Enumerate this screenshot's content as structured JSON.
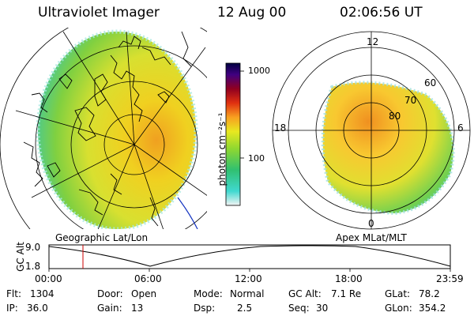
{
  "header": {
    "instrument": "Ultraviolet Imager",
    "date": "12 Aug 00",
    "time": "02:06:56 UT"
  },
  "colorbar": {
    "label": "photon cm⁻²s⁻¹",
    "ticks": [
      "1000",
      "100"
    ]
  },
  "panels": {
    "left_caption": "Geographic Lat/Lon",
    "right_caption": "Apex MLat/MLT",
    "polar_labels": {
      "top": "12",
      "bottom": "0",
      "left": "18",
      "right": "6"
    },
    "lat_labels": [
      "60",
      "70",
      "80"
    ]
  },
  "altitude_plot": {
    "ylabel": "GC Alt",
    "yticks": [
      "9.0",
      "1.8"
    ],
    "xticks": [
      "00:00",
      "06:00",
      "12:00",
      "18:00",
      "23:59"
    ]
  },
  "footer": {
    "flt_label": "Flt:",
    "flt": "1304",
    "ip_label": "IP:",
    "ip": "36.0",
    "door_label": "Door:",
    "door": "Open",
    "gain_label": "Gain:",
    "gain": "13",
    "mode_label": "Mode:",
    "mode": "Normal",
    "dsp_label": "Dsp:",
    "dsp": "2.5",
    "gcalt_label": "GC Alt:",
    "gcalt": "7.1 Re",
    "seq_label": "Seq:",
    "seq": "30",
    "glat_label": "GLat:",
    "glat": "78.2",
    "glon_label": "GLon:",
    "glon": "354.2"
  },
  "colors": {
    "scale": [
      "#f4f4f4",
      "#40d8d0",
      "#30c070",
      "#90d830",
      "#e8e820",
      "#f8a020",
      "#e03010",
      "#900020",
      "#400080",
      "#000040"
    ],
    "marker": "#cc0000",
    "coast": "#000000"
  }
}
